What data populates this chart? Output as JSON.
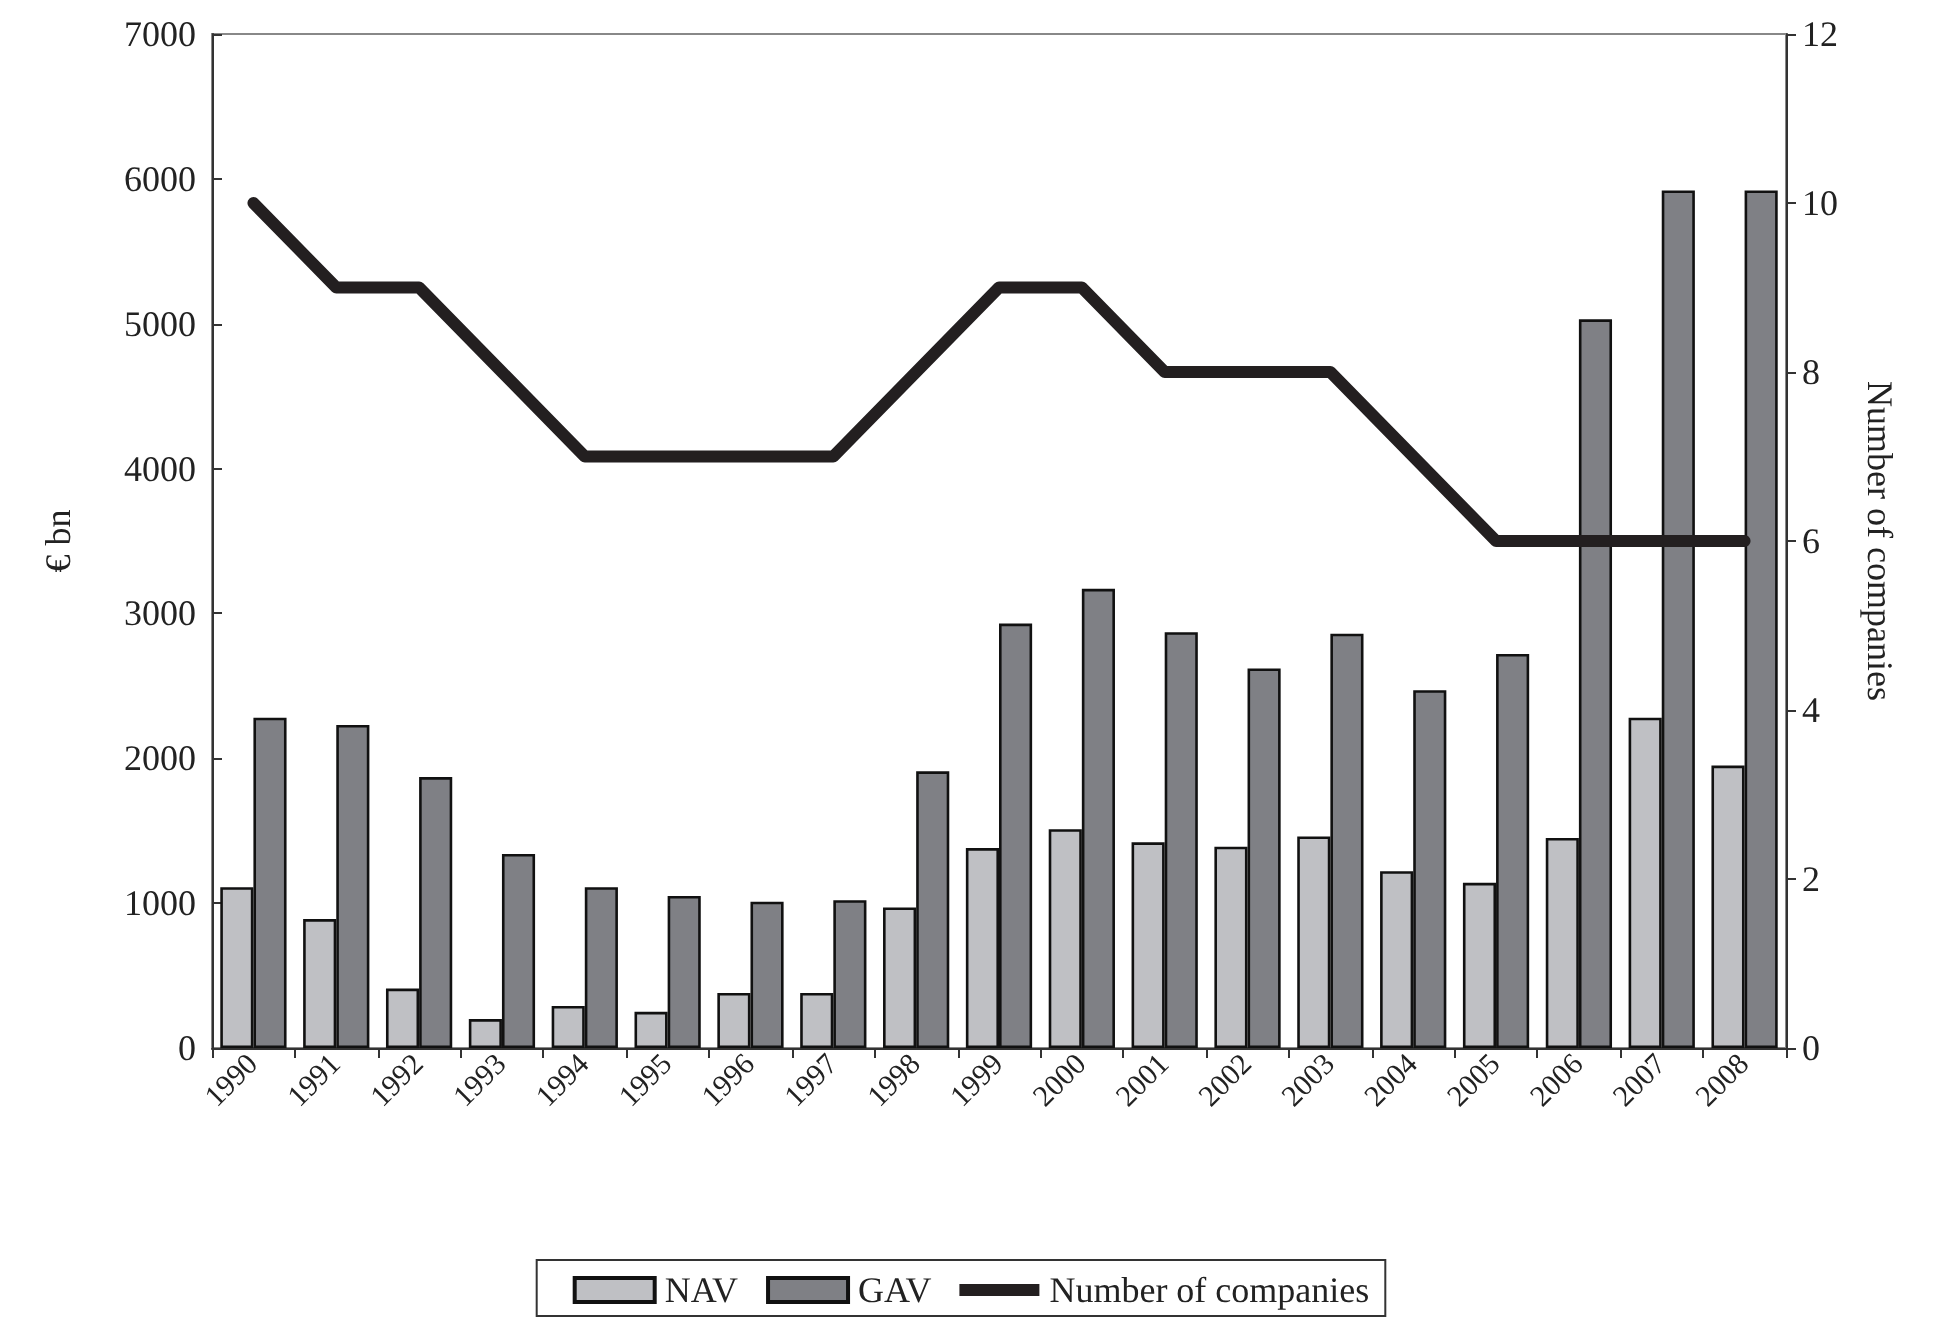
{
  "chart_data": {
    "type": "bar",
    "ylabel": "€ bn",
    "y2label": "Number of companies",
    "categories": [
      "1990",
      "1991",
      "1992",
      "1993",
      "1994",
      "1995",
      "1996",
      "1997",
      "1998",
      "1999",
      "2000",
      "2001",
      "2002",
      "2003",
      "2004",
      "2005",
      "2006",
      "2007",
      "2008"
    ],
    "series": [
      {
        "name": "NAV",
        "color": "#bfc0c4",
        "values": [
          1110,
          890,
          410,
          200,
          290,
          250,
          380,
          380,
          970,
          1380,
          1510,
          1420,
          1390,
          1460,
          1220,
          1140,
          1450,
          2280,
          1950
        ]
      },
      {
        "name": "GAV",
        "color": "#7f8085",
        "values": [
          2280,
          2230,
          1870,
          1340,
          1110,
          1050,
          1010,
          1020,
          1910,
          2930,
          3170,
          2870,
          2620,
          2860,
          2470,
          2720,
          5030,
          5920,
          5920
        ]
      },
      {
        "name": "Number of companies",
        "type": "line",
        "axis": "y2",
        "color": "#231f20",
        "values": [
          10,
          9,
          9,
          8,
          7,
          7,
          7,
          7,
          8,
          9,
          9,
          8,
          8,
          8,
          7,
          6,
          6,
          6,
          6
        ]
      }
    ],
    "ylim": [
      0,
      7000
    ],
    "yticks": [
      0,
      1000,
      2000,
      3000,
      4000,
      5000,
      6000,
      7000
    ],
    "y2lim": [
      0,
      12
    ],
    "y2ticks": [
      0,
      2,
      4,
      6,
      8,
      10,
      12
    ],
    "grid": false,
    "legend": "bottom",
    "marker": "none",
    "line_style": "solid"
  }
}
